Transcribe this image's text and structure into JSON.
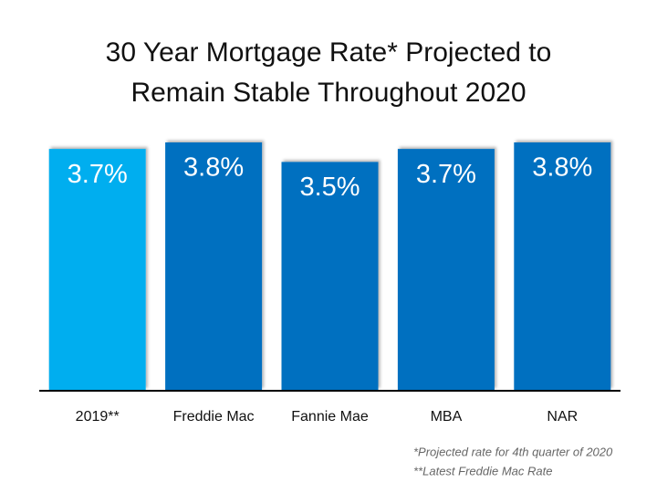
{
  "chart_data": {
    "type": "bar",
    "title": "30 Year Mortgage Rate* Projected to Remain Stable Throughout 2020",
    "categories": [
      "2019**",
      "Freddie Mac",
      "Fannie Mae",
      "MBA",
      "NAR"
    ],
    "values": [
      3.7,
      3.8,
      3.5,
      3.7,
      3.8
    ],
    "value_labels": [
      "3.7%",
      "3.8%",
      "3.5%",
      "3.7%",
      "3.8%"
    ],
    "colors": [
      "#00aeef",
      "#0070c0",
      "#0070c0",
      "#0070c0",
      "#0070c0"
    ],
    "notes": [
      "*Projected rate for 4th quarter of 2020",
      "**Latest Freddie Mac Rate"
    ]
  }
}
